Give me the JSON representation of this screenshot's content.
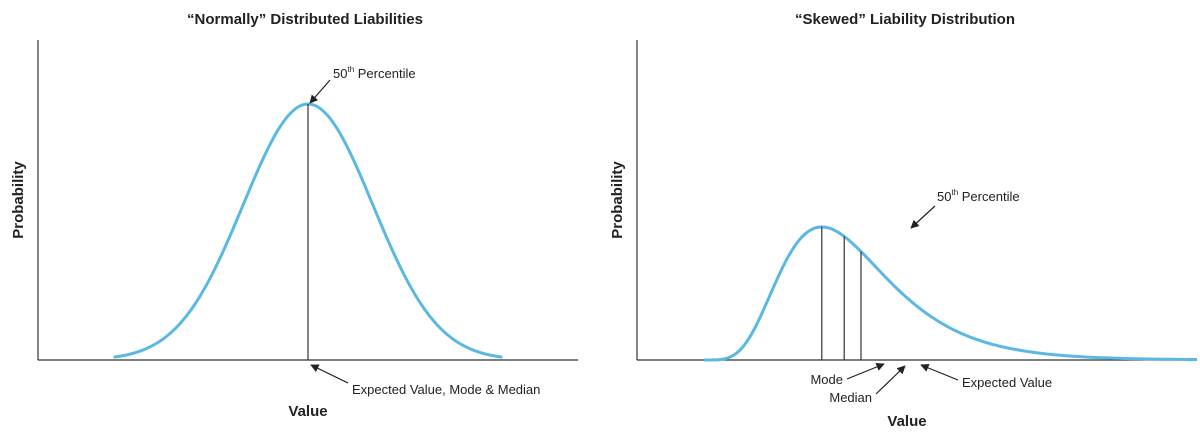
{
  "chart_data": [
    {
      "type": "line",
      "title": "“Normally” Distributed Liabilities",
      "xlabel": "Value",
      "ylabel": "Probability",
      "distribution": "normal",
      "x_range": [
        0,
        100
      ],
      "y_range": [
        0,
        1
      ],
      "params": {
        "mean": 50,
        "sd": 12
      },
      "line_color": "#5bb8e3",
      "grid": false,
      "annotations": {
        "percentile": {
          "number": "50",
          "suffix": "th",
          "label": "Percentile",
          "x": 50
        },
        "center": {
          "label": "Expected Value, Mode & Median",
          "x": 50
        }
      }
    },
    {
      "type": "line",
      "title": "“Skewed” Liability Distribution",
      "xlabel": "Value",
      "ylabel": "Probability",
      "distribution": "lognormal",
      "x_range": [
        0,
        100
      ],
      "y_range": [
        0,
        1
      ],
      "params": {
        "mode": 33,
        "median": 37,
        "mean": 40,
        "peak": 0.52
      },
      "line_color": "#5bb8e3",
      "grid": false,
      "annotations": {
        "percentile": {
          "number": "50",
          "suffix": "th",
          "label": "Percentile",
          "x": 37
        },
        "mode": {
          "label": "Mode",
          "x": 33
        },
        "median": {
          "label": "Median",
          "x": 37
        },
        "mean": {
          "label": "Expected Value",
          "x": 40
        }
      }
    }
  ]
}
